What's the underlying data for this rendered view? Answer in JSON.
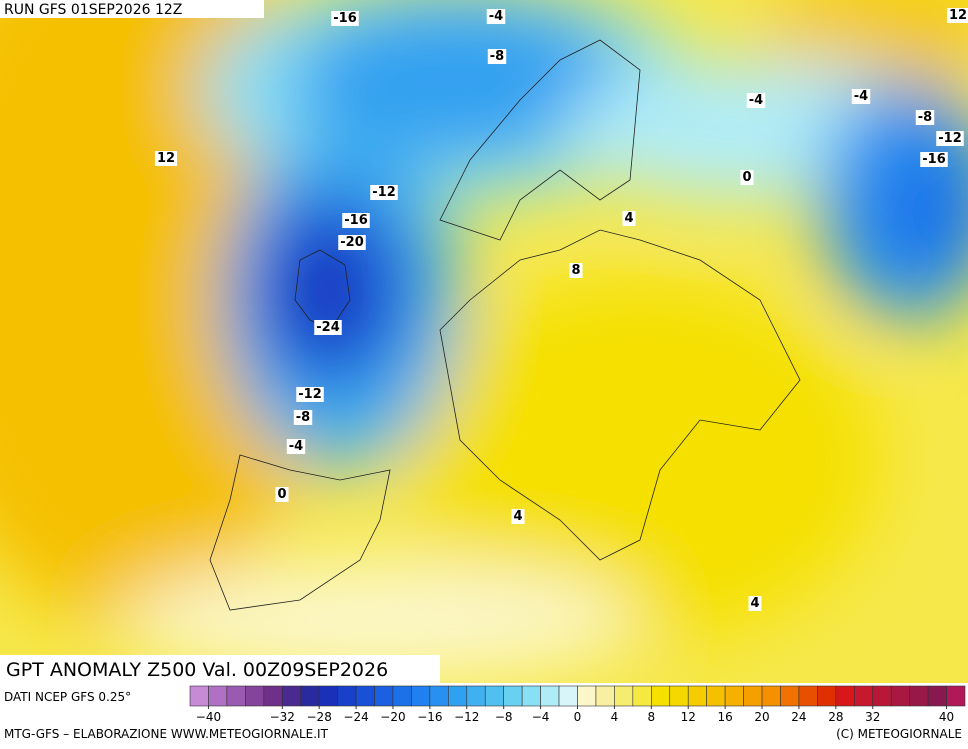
{
  "header": {
    "run": "RUN GFS 01SEP2026 12Z"
  },
  "map": {
    "title": "GPT ANOMALY Z500 Val. 00Z09SEP2026",
    "contour_labels": [
      "-16",
      "-4",
      "12",
      "-8",
      "-4",
      "-4",
      "-8",
      "-12",
      "-16",
      "12",
      "0",
      "-12",
      "-16",
      "4",
      "-20",
      "8",
      "-24",
      "-12",
      "-8",
      "-4",
      "0",
      "4",
      "4"
    ]
  },
  "colorbar": {
    "lim": [
      -42,
      42
    ],
    "ticks": [
      {
        "value": -40,
        "label": "−40"
      },
      {
        "value": -32,
        "label": "−32"
      },
      {
        "value": -28,
        "label": "−28"
      },
      {
        "value": -24,
        "label": "−24"
      },
      {
        "value": -20,
        "label": "−20"
      },
      {
        "value": -16,
        "label": "−16"
      },
      {
        "value": -12,
        "label": "−12"
      },
      {
        "value": -8,
        "label": "−8"
      },
      {
        "value": -4,
        "label": "−4"
      },
      0,
      4,
      8,
      12,
      16,
      20,
      24,
      28,
      32,
      40
    ],
    "colors": [
      "#c78bd6",
      "#b070c4",
      "#9a5ab0",
      "#84449c",
      "#6e3088",
      "#4a2a90",
      "#2a2aa0",
      "#1a30b8",
      "#1840c8",
      "#1850d8",
      "#1a60e0",
      "#1c70e8",
      "#2080f0",
      "#2890f0",
      "#30a0f0",
      "#40b0f0",
      "#50c0f0",
      "#68d0f0",
      "#88e0f4",
      "#b0ecf8",
      "#d8f6fa",
      "#fbf7c8",
      "#f8f0a0",
      "#f6ec70",
      "#f5e840",
      "#f5e000",
      "#f5d800",
      "#f5cc00",
      "#f5c000",
      "#f5b000",
      "#f5a000",
      "#f59000",
      "#f07000",
      "#e85000",
      "#e03000",
      "#d81818",
      "#c81830",
      "#b81838",
      "#a81840",
      "#981848",
      "#881850",
      "#b01858"
    ]
  },
  "footer": {
    "source": "DATI NCEP GFS 0.25°",
    "credit": "MTG-GFS – ELABORAZIONE WWW.METEOGIORNALE.IT",
    "copyright": "(C) METEOGIORNALE"
  }
}
